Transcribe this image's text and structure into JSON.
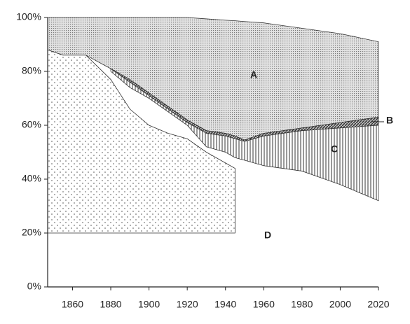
{
  "chart_data": {
    "type": "area",
    "x": [
      1847,
      1855,
      1867,
      1880,
      1890,
      1900,
      1910,
      1920,
      1930,
      1940,
      1945,
      1950,
      1960,
      1980,
      2000,
      2020
    ],
    "series": [
      {
        "name": "A",
        "color": "#7a7a7a",
        "values": [
          100,
          100,
          100,
          100,
          100,
          100,
          100,
          100,
          99.5,
          99,
          98.8,
          98.5,
          98,
          96,
          94,
          91
        ],
        "lower": [
          88,
          86,
          86,
          81,
          77,
          72,
          67,
          62,
          58,
          57,
          56,
          54.5,
          57,
          59,
          61,
          63
        ]
      },
      {
        "name": "B",
        "color": "#333333",
        "values": [
          null,
          null,
          null,
          81,
          77,
          72,
          67,
          62,
          58,
          57,
          56,
          54.5,
          57,
          59,
          61,
          63
        ],
        "lower": [
          null,
          null,
          null,
          81,
          76,
          71,
          66,
          61,
          57,
          56,
          55,
          54,
          56,
          58,
          59,
          60
        ]
      },
      {
        "name": "C",
        "color": "#333333",
        "values": [
          null,
          null,
          null,
          81,
          76,
          71,
          66,
          61,
          57,
          56,
          55,
          54,
          56,
          58,
          59,
          60
        ],
        "lower": [
          null,
          null,
          null,
          80,
          74,
          70,
          65,
          60,
          52,
          50,
          48,
          47,
          45,
          43,
          38,
          32
        ]
      },
      {
        "name": "D",
        "color": "#555555",
        "values": [
          88,
          86,
          86,
          77,
          66,
          60,
          57,
          55,
          50,
          46,
          44,
          null,
          null,
          null,
          null,
          null
        ],
        "lower": [
          20,
          20,
          20,
          20,
          20,
          20,
          20,
          20,
          20,
          20,
          20,
          null,
          null,
          null,
          null,
          null
        ]
      }
    ],
    "xlim": [
      1847,
      2020
    ],
    "xticks": [
      1860,
      1880,
      1900,
      1920,
      1940,
      1960,
      1980,
      2000,
      2020
    ],
    "ylim": [
      0,
      100
    ],
    "yticks": [
      {
        "value": 0,
        "label": "0%"
      },
      {
        "value": 20,
        "label": "20%"
      },
      {
        "value": 40,
        "label": "40%"
      },
      {
        "value": 60,
        "label": "60%"
      },
      {
        "value": 80,
        "label": "80%"
      },
      {
        "value": 100,
        "label": "100%"
      }
    ]
  }
}
